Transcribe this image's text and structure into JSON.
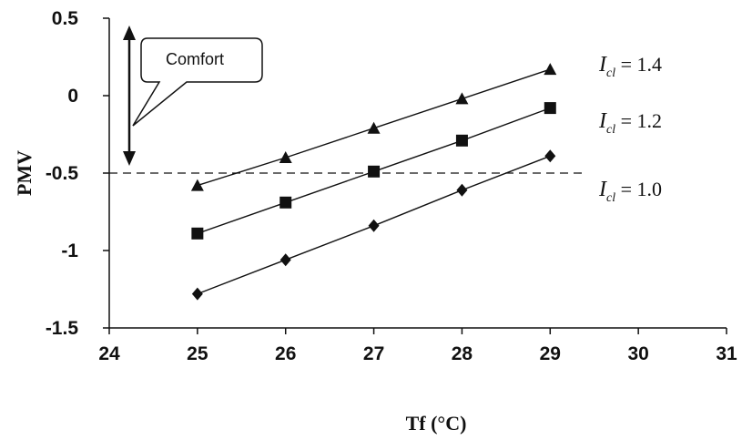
{
  "chart_data": {
    "type": "line",
    "xlabel": "Tf (°C)",
    "ylabel": "PMV",
    "xlim": [
      24,
      31
    ],
    "ylim": [
      -1.5,
      0.5
    ],
    "xticks": [
      "24",
      "25",
      "26",
      "27",
      "28",
      "29",
      "30",
      "31"
    ],
    "yticks": [
      "0.5",
      "0",
      "-0.5",
      "-1",
      "-1.5"
    ],
    "grid": false,
    "reference_line": {
      "y": -0.5,
      "style": "dashed"
    },
    "comfort_annotation": {
      "text": "Comfort",
      "y_range": [
        -0.5,
        0.5
      ]
    },
    "series": [
      {
        "name": "I_cl = 1.4",
        "label_main": "I",
        "label_sub": "cl",
        "label_rest": " = 1.4",
        "marker": "triangle",
        "x": [
          25,
          26,
          27,
          28,
          29
        ],
        "y": [
          -0.58,
          -0.4,
          -0.21,
          -0.02,
          0.17
        ]
      },
      {
        "name": "I_cl = 1.2",
        "label_main": "I",
        "label_sub": "cl",
        "label_rest": " = 1.2",
        "marker": "square",
        "x": [
          25,
          26,
          27,
          28,
          29
        ],
        "y": [
          -0.89,
          -0.69,
          -0.49,
          -0.29,
          -0.08
        ]
      },
      {
        "name": "I_cl = 1.0",
        "label_main": "I",
        "label_sub": "cl",
        "label_rest": " = 1.0",
        "marker": "diamond",
        "x": [
          25,
          26,
          27,
          28,
          29
        ],
        "y": [
          -1.28,
          -1.06,
          -0.84,
          -0.61,
          -0.39
        ]
      }
    ]
  }
}
